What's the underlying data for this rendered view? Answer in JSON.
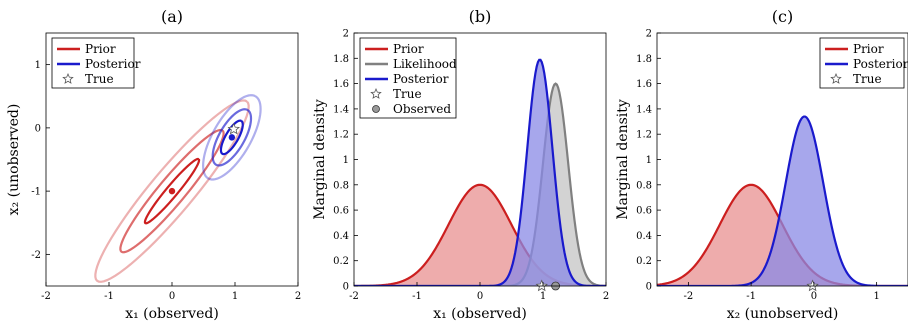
{
  "chart_data": [
    {
      "panel": "a",
      "type": "contour",
      "title": "(a)",
      "xlabel": "x₁ (observed)",
      "ylabel": "x₂ (unobserved)",
      "xlim": [
        -2,
        2
      ],
      "ylim": [
        -2.5,
        1.5
      ],
      "xticks": [
        "-2",
        "-1",
        "0",
        "1",
        "2"
      ],
      "yticks": [
        "-2",
        "-1",
        "0",
        "1"
      ],
      "legend": {
        "placement": "top-left",
        "entries": [
          "Prior",
          "Posterior",
          "True"
        ]
      },
      "series": [
        {
          "name": "Prior",
          "color": "#cc1f1f",
          "mean": [
            0,
            -1
          ],
          "ellipses": [
            {
              "a": 0.66,
              "b": 0.09,
              "angle_deg": 50,
              "opacity": 1.0
            },
            {
              "a": 1.25,
              "b": 0.21,
              "angle_deg": 50,
              "opacity": 0.65
            },
            {
              "a": 1.85,
              "b": 0.34,
              "angle_deg": 50,
              "opacity": 0.35
            }
          ]
        },
        {
          "name": "Posterior",
          "color": "#1a1acc",
          "mean": [
            0.95,
            -0.15
          ],
          "ellipses": [
            {
              "a": 0.3,
              "b": 0.1,
              "angle_deg": 60,
              "opacity": 1.0
            },
            {
              "a": 0.5,
              "b": 0.2,
              "angle_deg": 60,
              "opacity": 0.65
            },
            {
              "a": 0.75,
              "b": 0.3,
              "angle_deg": 60,
              "opacity": 0.35
            }
          ]
        }
      ],
      "true_point": [
        0.98,
        -0.02
      ]
    },
    {
      "panel": "b",
      "type": "area",
      "title": "(b)",
      "xlabel": "x₁ (observed)",
      "ylabel": "Marginal density",
      "xlim": [
        -2,
        2
      ],
      "ylim": [
        0,
        2
      ],
      "xticks": [
        "-2",
        "-1",
        "0",
        "1",
        "2"
      ],
      "yticks": [
        "0",
        "0.2",
        "0.4",
        "0.6",
        "0.8",
        "1",
        "1.2",
        "1.4",
        "1.6",
        "1.8",
        "2"
      ],
      "legend": {
        "placement": "top-left",
        "entries": [
          "Prior",
          "Likelihood",
          "Posterior",
          "True",
          "Observed"
        ]
      },
      "series": [
        {
          "name": "Prior",
          "color": "#cc1f1f",
          "fill": "#e89090",
          "mean": 0,
          "sd": 0.5,
          "peak": 0.8
        },
        {
          "name": "Likelihood",
          "color": "#808080",
          "fill": "#c4c4c4",
          "mean": 1.2,
          "sd": 0.2,
          "peak": 1.6
        },
        {
          "name": "Posterior",
          "color": "#1a1acc",
          "fill": "#8a8ae6",
          "mean": 0.95,
          "sd": 0.2,
          "peak": 1.79
        }
      ],
      "true_point": [
        0.98,
        0
      ],
      "observed_point": [
        1.2,
        0
      ]
    },
    {
      "panel": "c",
      "type": "area",
      "title": "(c)",
      "xlabel": "x₂ (unobserved)",
      "ylabel": "Marginal density",
      "xlim": [
        -2.5,
        1.5
      ],
      "ylim": [
        0,
        2
      ],
      "xticks": [
        "-2",
        "-1",
        "0",
        "1"
      ],
      "yticks": [
        "0",
        "0.2",
        "0.4",
        "0.6",
        "0.8",
        "1",
        "1.2",
        "1.4",
        "1.6",
        "1.8",
        "2"
      ],
      "legend": {
        "placement": "top-right",
        "entries": [
          "Prior",
          "Posterior",
          "True"
        ]
      },
      "series": [
        {
          "name": "Prior",
          "color": "#cc1f1f",
          "fill": "#e89090",
          "mean": -1,
          "sd": 0.5,
          "peak": 0.8
        },
        {
          "name": "Posterior",
          "color": "#1a1acc",
          "fill": "#8a8ae6",
          "mean": -0.15,
          "sd": 0.3,
          "peak": 1.34
        }
      ],
      "true_point": [
        -0.02,
        0
      ]
    }
  ]
}
